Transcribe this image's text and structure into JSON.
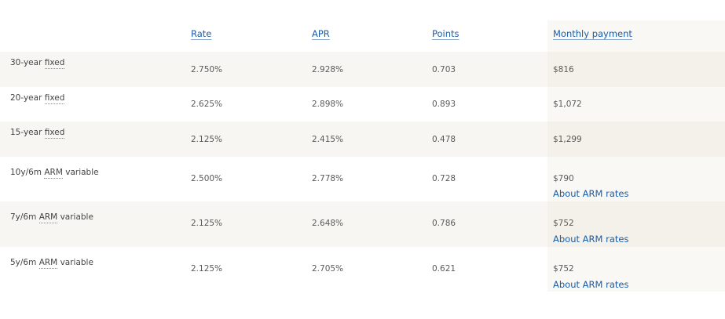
{
  "headers": {
    "rate": "Rate",
    "apr": "APR",
    "points": "Points",
    "monthly_payment": "Monthly payment"
  },
  "rows": [
    {
      "pre": "30-year ",
      "abbr": "fixed",
      "post": "",
      "rate": "2.750%",
      "apr": "2.928%",
      "points": "0.703",
      "payment": "$816",
      "link": ""
    },
    {
      "pre": "20-year ",
      "abbr": "fixed",
      "post": "",
      "rate": "2.625%",
      "apr": "2.898%",
      "points": "0.893",
      "payment": "$1,072",
      "link": ""
    },
    {
      "pre": "15-year ",
      "abbr": "fixed",
      "post": "",
      "rate": "2.125%",
      "apr": "2.415%",
      "points": "0.478",
      "payment": "$1,299",
      "link": ""
    },
    {
      "pre": "10y/6m ",
      "abbr": "ARM",
      "post": " variable",
      "rate": "2.500%",
      "apr": "2.778%",
      "points": "0.728",
      "payment": "$790",
      "link": "About ARM rates"
    },
    {
      "pre": "7y/6m ",
      "abbr": "ARM",
      "post": " variable",
      "rate": "2.125%",
      "apr": "2.648%",
      "points": "0.786",
      "payment": "$752",
      "link": "About ARM rates"
    },
    {
      "pre": "5y/6m ",
      "abbr": "ARM",
      "post": " variable",
      "rate": "2.125%",
      "apr": "2.705%",
      "points": "0.621",
      "payment": "$752",
      "link": "About ARM rates"
    }
  ]
}
